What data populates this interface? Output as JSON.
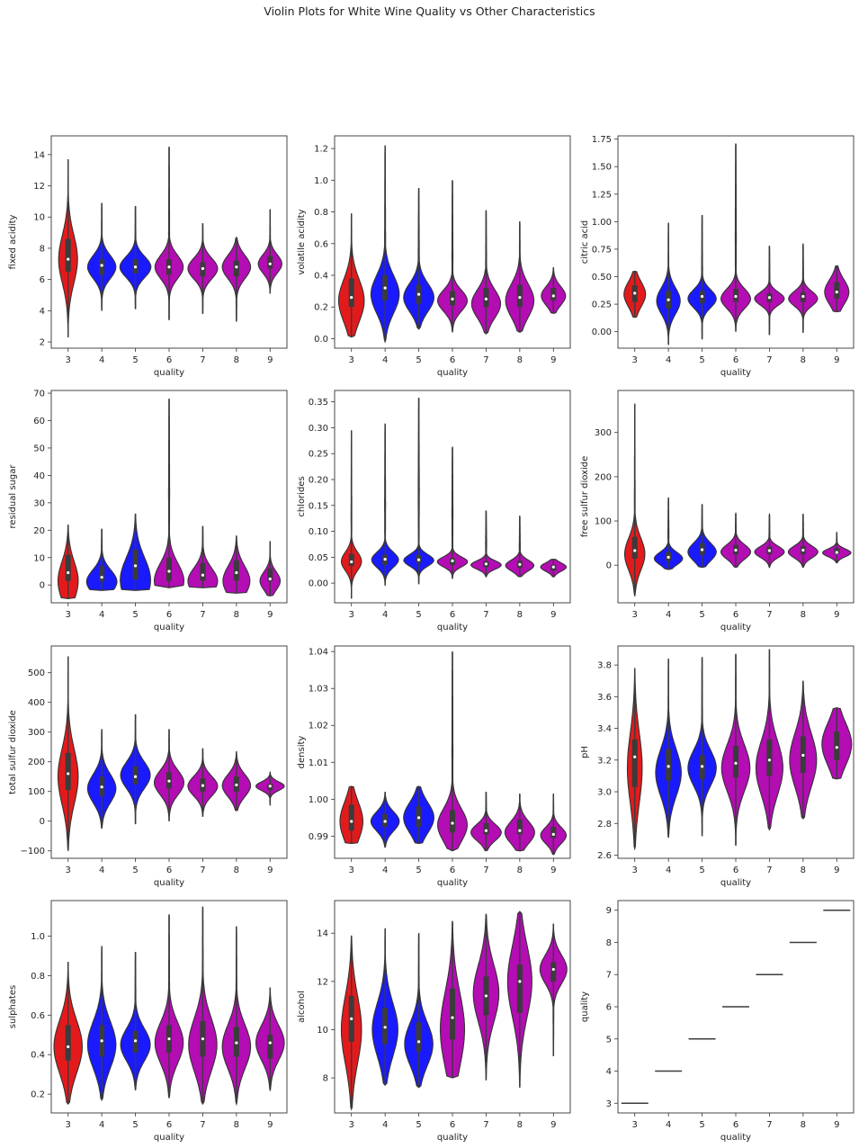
{
  "figure": {
    "title": "Violin Plots for White Wine Quality vs Other Characteristics"
  },
  "colors": {
    "red": "#e31a1c",
    "blue": "#1a1aff",
    "magenta": "#b30db3",
    "box": "#3b3b3b",
    "edge": "#333333",
    "median": "#ffffff"
  },
  "violin_colors": [
    "red",
    "blue",
    "blue",
    "magenta",
    "magenta",
    "magenta",
    "magenta"
  ],
  "chart_data": [
    {
      "type": "violin",
      "xlabel": "quality",
      "ylabel": "fixed acidity",
      "categories": [
        "3",
        "4",
        "5",
        "6",
        "7",
        "8",
        "9"
      ],
      "ylim": [
        1.6,
        15.2
      ],
      "yticks": [
        2,
        4,
        6,
        8,
        10,
        12,
        14
      ],
      "tick_labels": [
        "2",
        "4",
        "6",
        "8",
        "10",
        "12",
        "14"
      ],
      "min": [
        2.3,
        4.0,
        4.1,
        3.4,
        3.8,
        3.3,
        5.1
      ],
      "max": [
        13.7,
        10.9,
        10.7,
        14.5,
        9.6,
        8.7,
        10.5
      ],
      "q1": [
        6.5,
        6.3,
        6.4,
        6.3,
        6.2,
        6.2,
        6.7
      ],
      "q3": [
        8.6,
        7.3,
        7.3,
        7.3,
        7.1,
        7.2,
        7.5
      ],
      "median": [
        7.3,
        6.9,
        6.8,
        6.8,
        6.7,
        6.8,
        7.0
      ],
      "peak": [
        7.3,
        6.8,
        6.8,
        6.8,
        6.7,
        6.8,
        7.0
      ],
      "width": [
        0.28,
        0.42,
        0.46,
        0.42,
        0.44,
        0.42,
        0.35
      ]
    },
    {
      "type": "violin",
      "xlabel": "quality",
      "ylabel": "volatile acidity",
      "categories": [
        "3",
        "4",
        "5",
        "6",
        "7",
        "8",
        "9"
      ],
      "ylim": [
        -0.06,
        1.28
      ],
      "yticks": [
        0,
        0.2,
        0.4,
        0.6,
        0.8,
        1.0,
        1.2
      ],
      "tick_labels": [
        "0.0",
        "0.2",
        "0.4",
        "0.6",
        "0.8",
        "1.0",
        "1.2"
      ],
      "min": [
        0.01,
        -0.02,
        0.06,
        0.04,
        0.03,
        0.04,
        0.16
      ],
      "max": [
        0.79,
        1.22,
        0.95,
        1.0,
        0.81,
        0.74,
        0.45
      ],
      "q1": [
        0.2,
        0.24,
        0.22,
        0.21,
        0.2,
        0.2,
        0.24
      ],
      "q3": [
        0.38,
        0.4,
        0.34,
        0.3,
        0.32,
        0.34,
        0.32
      ],
      "median": [
        0.26,
        0.32,
        0.28,
        0.25,
        0.25,
        0.26,
        0.27
      ],
      "peak": [
        0.24,
        0.28,
        0.26,
        0.24,
        0.22,
        0.24,
        0.27
      ],
      "width": [
        0.38,
        0.42,
        0.45,
        0.44,
        0.43,
        0.42,
        0.36
      ]
    },
    {
      "type": "violin",
      "xlabel": "quality",
      "ylabel": "citric acid",
      "categories": [
        "3",
        "4",
        "5",
        "6",
        "7",
        "8",
        "9"
      ],
      "ylim": [
        -0.15,
        1.78
      ],
      "yticks": [
        0,
        0.25,
        0.5,
        0.75,
        1.0,
        1.25,
        1.5,
        1.75
      ],
      "tick_labels": [
        "0.00",
        "0.25",
        "0.50",
        "0.75",
        "1.00",
        "1.25",
        "1.50",
        "1.75"
      ],
      "min": [
        0.13,
        -0.12,
        -0.07,
        0.0,
        -0.03,
        -0.01,
        0.18
      ],
      "max": [
        0.55,
        0.99,
        1.06,
        1.71,
        0.78,
        0.8,
        0.6
      ],
      "q1": [
        0.27,
        0.21,
        0.26,
        0.27,
        0.27,
        0.27,
        0.3
      ],
      "q3": [
        0.42,
        0.37,
        0.37,
        0.39,
        0.35,
        0.36,
        0.45
      ],
      "median": [
        0.35,
        0.29,
        0.32,
        0.32,
        0.31,
        0.32,
        0.36
      ],
      "peak": [
        0.34,
        0.28,
        0.3,
        0.3,
        0.3,
        0.3,
        0.36
      ],
      "width": [
        0.32,
        0.35,
        0.42,
        0.44,
        0.44,
        0.43,
        0.36
      ]
    },
    {
      "type": "violin",
      "xlabel": "quality",
      "ylabel": "residual sugar",
      "categories": [
        "3",
        "4",
        "5",
        "6",
        "7",
        "8",
        "9"
      ],
      "ylim": [
        -6.5,
        71
      ],
      "yticks": [
        0,
        10,
        20,
        30,
        40,
        50,
        60,
        70
      ],
      "tick_labels": [
        "0",
        "10",
        "20",
        "30",
        "40",
        "50",
        "60",
        "70"
      ],
      "min": [
        -5,
        -2,
        -2,
        -1,
        -1,
        -3,
        -4
      ],
      "max": [
        22,
        20.5,
        26,
        68,
        21.5,
        18,
        16
      ],
      "q1": [
        1.5,
        1.3,
        2.0,
        1.5,
        1.6,
        1.6,
        1.5
      ],
      "q3": [
        11,
        7,
        13,
        10,
        8,
        9,
        6
      ],
      "median": [
        4.5,
        2.8,
        7.0,
        5.0,
        3.6,
        4.5,
        2.2
      ],
      "peak": [
        1.5,
        1.2,
        1.8,
        1.5,
        1.4,
        1.5,
        1.5
      ],
      "width": [
        0.3,
        0.45,
        0.45,
        0.44,
        0.44,
        0.4,
        0.3
      ]
    },
    {
      "type": "violin",
      "xlabel": "quality",
      "ylabel": "chlorides",
      "categories": [
        "3",
        "4",
        "5",
        "6",
        "7",
        "8",
        "9"
      ],
      "ylim": [
        -0.038,
        0.372
      ],
      "yticks": [
        0,
        0.05,
        0.1,
        0.15,
        0.2,
        0.25,
        0.3,
        0.35
      ],
      "tick_labels": [
        "0.00",
        "0.05",
        "0.10",
        "0.15",
        "0.20",
        "0.25",
        "0.30",
        "0.35"
      ],
      "min": [
        -0.03,
        -0.005,
        -0.002,
        0.008,
        0.012,
        0.012,
        0.012
      ],
      "max": [
        0.295,
        0.308,
        0.358,
        0.263,
        0.14,
        0.13,
        0.046
      ],
      "q1": [
        0.033,
        0.035,
        0.039,
        0.035,
        0.031,
        0.029,
        0.024
      ],
      "q3": [
        0.057,
        0.055,
        0.054,
        0.048,
        0.042,
        0.043,
        0.035
      ],
      "median": [
        0.041,
        0.046,
        0.045,
        0.043,
        0.037,
        0.036,
        0.031
      ],
      "peak": [
        0.042,
        0.045,
        0.044,
        0.041,
        0.035,
        0.034,
        0.031
      ],
      "width": [
        0.3,
        0.4,
        0.45,
        0.45,
        0.45,
        0.42,
        0.38
      ]
    },
    {
      "type": "violin",
      "xlabel": "quality",
      "ylabel": "free sulfur dioxide",
      "categories": [
        "3",
        "4",
        "5",
        "6",
        "7",
        "8",
        "9"
      ],
      "ylim": [
        -85,
        395
      ],
      "yticks": [
        0,
        100,
        200,
        300
      ],
      "tick_labels": [
        "0",
        "100",
        "200",
        "300"
      ],
      "min": [
        -70,
        -10,
        -5,
        -5,
        -5,
        -5,
        5
      ],
      "max": [
        365,
        153,
        138,
        117,
        115,
        116,
        74
      ],
      "q1": [
        15,
        10,
        23,
        24,
        25,
        25,
        26
      ],
      "q3": [
        64,
        29,
        50,
        46,
        42,
        43,
        38
      ],
      "median": [
        33,
        18,
        35,
        34,
        33,
        34,
        29
      ],
      "peak": [
        25,
        15,
        30,
        30,
        30,
        30,
        28
      ],
      "width": [
        0.3,
        0.42,
        0.42,
        0.44,
        0.44,
        0.44,
        0.42
      ]
    },
    {
      "type": "violin",
      "xlabel": "quality",
      "ylabel": "total sulfur dioxide",
      "categories": [
        "3",
        "4",
        "5",
        "6",
        "7",
        "8",
        "9"
      ],
      "ylim": [
        -125,
        590
      ],
      "yticks": [
        -100,
        0,
        100,
        200,
        300,
        400,
        500
      ],
      "tick_labels": [
        "−100",
        "0",
        "100",
        "200",
        "300",
        "400",
        "500"
      ],
      "min": [
        -100,
        -25,
        -10,
        0,
        15,
        35,
        55
      ],
      "max": [
        555,
        310,
        360,
        310,
        245,
        235,
        165
      ],
      "q1": [
        105,
        85,
        125,
        110,
        100,
        100,
        105
      ],
      "q3": [
        230,
        150,
        185,
        165,
        145,
        150,
        125
      ],
      "median": [
        160,
        115,
        150,
        135,
        120,
        122,
        118
      ],
      "peak": [
        150,
        110,
        155,
        130,
        118,
        120,
        118
      ],
      "width": [
        0.3,
        0.42,
        0.44,
        0.44,
        0.44,
        0.42,
        0.42
      ]
    },
    {
      "type": "violin",
      "xlabel": "quality",
      "ylabel": "density",
      "categories": [
        "3",
        "4",
        "5",
        "6",
        "7",
        "8",
        "9"
      ],
      "ylim": [
        0.984,
        1.0415
      ],
      "yticks": [
        0.99,
        1.0,
        1.01,
        1.02,
        1.03,
        1.04
      ],
      "tick_labels": [
        "0.99",
        "1.00",
        "1.01",
        "1.02",
        "1.03",
        "1.04"
      ],
      "min": [
        0.988,
        0.987,
        0.988,
        0.986,
        0.986,
        0.986,
        0.985
      ],
      "max": [
        1.0035,
        1.002,
        1.0035,
        1.04,
        1.002,
        1.0015,
        1.0015
      ],
      "q1": [
        0.9915,
        0.9925,
        0.9925,
        0.991,
        0.9905,
        0.9905,
        0.9895
      ],
      "q3": [
        0.9985,
        0.996,
        0.998,
        0.997,
        0.9935,
        0.9945,
        0.9925
      ],
      "median": [
        0.994,
        0.994,
        0.995,
        0.9935,
        0.9915,
        0.9915,
        0.9905
      ],
      "peak": [
        0.994,
        0.994,
        0.995,
        0.993,
        0.991,
        0.991,
        0.9902
      ],
      "width": [
        0.34,
        0.42,
        0.45,
        0.44,
        0.45,
        0.44,
        0.38
      ]
    },
    {
      "type": "violin",
      "xlabel": "quality",
      "ylabel": "pH",
      "categories": [
        "3",
        "4",
        "5",
        "6",
        "7",
        "8",
        "9"
      ],
      "ylim": [
        2.58,
        3.92
      ],
      "yticks": [
        2.6,
        2.8,
        3.0,
        3.2,
        3.4,
        3.6,
        3.8
      ],
      "tick_labels": [
        "2.6",
        "2.8",
        "3.0",
        "3.2",
        "3.4",
        "3.6",
        "3.8"
      ],
      "min": [
        2.64,
        2.71,
        2.72,
        2.66,
        2.76,
        2.83,
        3.08
      ],
      "max": [
        3.78,
        3.84,
        3.85,
        3.87,
        3.9,
        3.7,
        3.53
      ],
      "q1": [
        3.03,
        3.07,
        3.08,
        3.09,
        3.1,
        3.12,
        3.2
      ],
      "q3": [
        3.33,
        3.27,
        3.23,
        3.29,
        3.33,
        3.35,
        3.38
      ],
      "median": [
        3.22,
        3.16,
        3.16,
        3.18,
        3.2,
        3.23,
        3.28
      ],
      "peak": [
        3.15,
        3.12,
        3.15,
        3.15,
        3.15,
        3.2,
        3.3
      ],
      "width": [
        0.22,
        0.38,
        0.42,
        0.42,
        0.4,
        0.4,
        0.44
      ]
    },
    {
      "type": "violin",
      "xlabel": "quality",
      "ylabel": "sulphates",
      "categories": [
        "3",
        "4",
        "5",
        "6",
        "7",
        "8",
        "9"
      ],
      "ylim": [
        0.105,
        1.18
      ],
      "yticks": [
        0.2,
        0.4,
        0.6,
        0.8,
        1.0
      ],
      "tick_labels": [
        "0.2",
        "0.4",
        "0.6",
        "0.8",
        "1.0"
      ],
      "min": [
        0.15,
        0.17,
        0.22,
        0.18,
        0.15,
        0.15,
        0.22
      ],
      "max": [
        0.87,
        0.95,
        0.92,
        1.11,
        1.15,
        1.05,
        0.74
      ],
      "q1": [
        0.37,
        0.39,
        0.41,
        0.41,
        0.39,
        0.39,
        0.38
      ],
      "q3": [
        0.55,
        0.55,
        0.52,
        0.55,
        0.57,
        0.54,
        0.5
      ],
      "median": [
        0.44,
        0.47,
        0.47,
        0.48,
        0.48,
        0.46,
        0.46
      ],
      "peak": [
        0.44,
        0.45,
        0.45,
        0.46,
        0.45,
        0.44,
        0.46
      ],
      "width": [
        0.42,
        0.42,
        0.44,
        0.42,
        0.42,
        0.42,
        0.42
      ]
    },
    {
      "type": "violin",
      "xlabel": "quality",
      "ylabel": "alcohol",
      "categories": [
        "3",
        "4",
        "5",
        "6",
        "7",
        "8",
        "9"
      ],
      "ylim": [
        6.55,
        15.35
      ],
      "yticks": [
        8,
        10,
        12,
        14
      ],
      "tick_labels": [
        "8",
        "10",
        "12",
        "14"
      ],
      "min": [
        6.7,
        7.7,
        7.6,
        8.0,
        7.9,
        7.6,
        8.9
      ],
      "max": [
        13.9,
        14.2,
        14.0,
        14.5,
        14.8,
        14.9,
        14.4
      ],
      "q1": [
        9.5,
        9.4,
        9.1,
        9.6,
        10.6,
        10.7,
        12.0
      ],
      "q3": [
        11.4,
        10.9,
        10.3,
        11.7,
        12.2,
        12.7,
        12.8
      ],
      "median": [
        10.45,
        10.1,
        9.5,
        10.5,
        11.4,
        12.0,
        12.5
      ],
      "peak": [
        10.0,
        10.0,
        9.4,
        10.0,
        11.5,
        12.0,
        12.5
      ],
      "width": [
        0.3,
        0.38,
        0.42,
        0.36,
        0.38,
        0.36,
        0.4
      ]
    },
    {
      "type": "box",
      "xlabel": "quality",
      "ylabel": "quality",
      "categories": [
        "3",
        "4",
        "5",
        "6",
        "7",
        "8",
        "9"
      ],
      "ylim": [
        2.7,
        9.3
      ],
      "yticks": [
        3,
        4,
        5,
        6,
        7,
        8,
        9
      ],
      "tick_labels": [
        "3",
        "4",
        "5",
        "6",
        "7",
        "8",
        "9"
      ],
      "values": [
        3,
        4,
        5,
        6,
        7,
        8,
        9
      ]
    }
  ]
}
